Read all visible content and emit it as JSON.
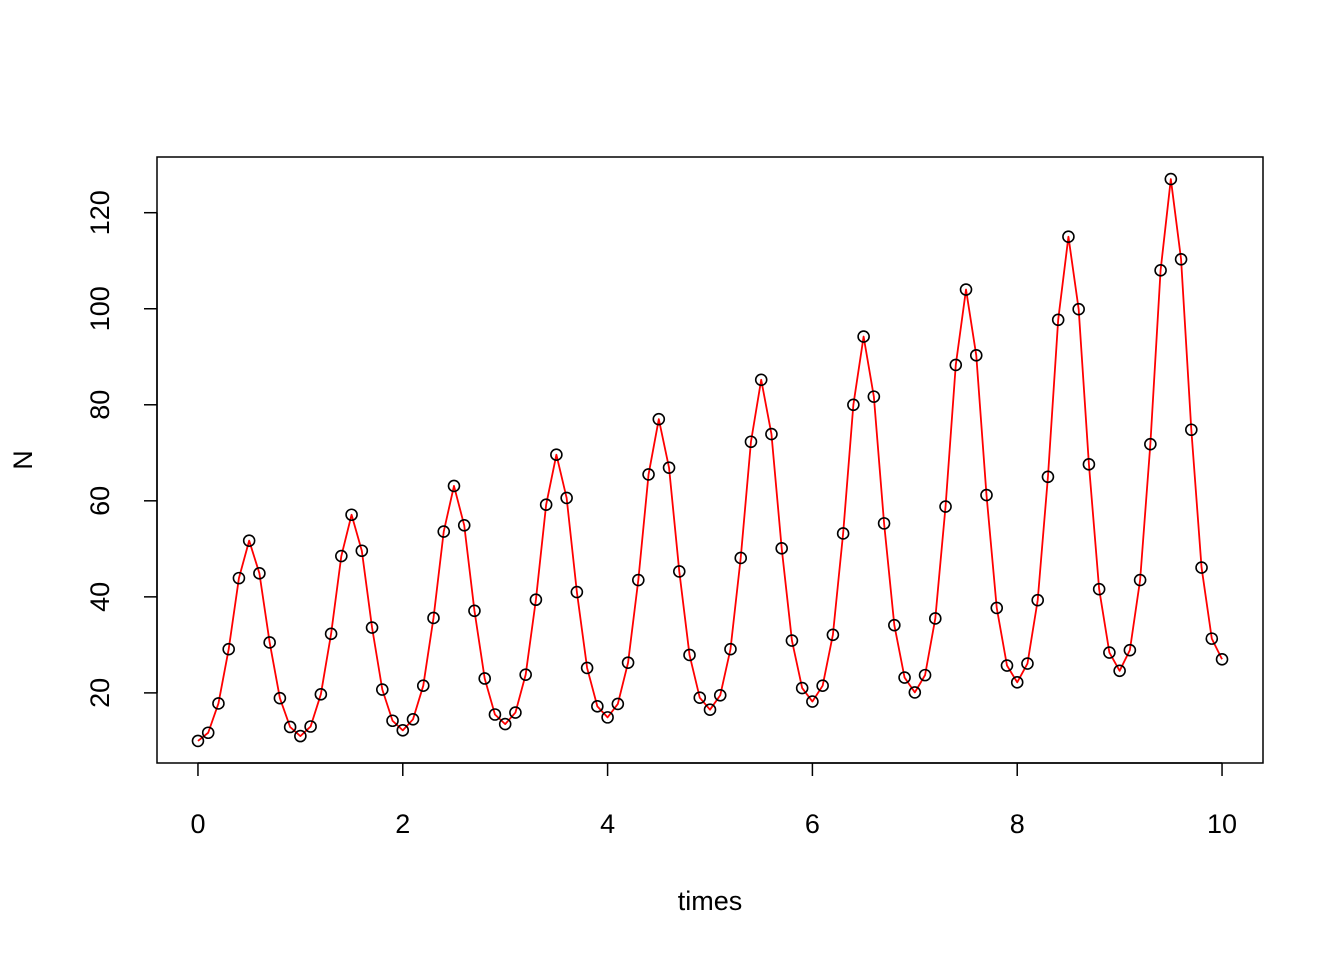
{
  "chart_data": {
    "type": "scatter",
    "title": "",
    "xlabel": "times",
    "ylabel": "N",
    "xlim": [
      -0.4,
      10.4
    ],
    "ylim": [
      5.4,
      131.6
    ],
    "xticks": [
      0,
      2,
      4,
      6,
      8,
      10
    ],
    "xtick_labels": [
      "0",
      "2",
      "4",
      "6",
      "8",
      "10"
    ],
    "yticks": [
      20,
      40,
      60,
      80,
      100,
      120
    ],
    "ytick_labels": [
      "20",
      "40",
      "60",
      "80",
      "100",
      "120"
    ],
    "grid": false,
    "legend": "none",
    "x": [
      0.0,
      0.1,
      0.2,
      0.3,
      0.4,
      0.5,
      0.6,
      0.7,
      0.8,
      0.9,
      1.0,
      1.1,
      1.2,
      1.3,
      1.4,
      1.5,
      1.6,
      1.7,
      1.8,
      1.9,
      2.0,
      2.1,
      2.2,
      2.3,
      2.4,
      2.5,
      2.6,
      2.7,
      2.8,
      2.9,
      3.0,
      3.1,
      3.2,
      3.3,
      3.4,
      3.5,
      3.6,
      3.7,
      3.8,
      3.9,
      4.0,
      4.1,
      4.2,
      4.3,
      4.4,
      4.5,
      4.6,
      4.7,
      4.8,
      4.9,
      5.0,
      5.1,
      5.2,
      5.3,
      5.4,
      5.5,
      5.6,
      5.7,
      5.8,
      5.9,
      6.0,
      6.1,
      6.2,
      6.3,
      6.4,
      6.5,
      6.6,
      6.7,
      6.8,
      6.9,
      7.0,
      7.1,
      7.2,
      7.3,
      7.4,
      7.5,
      7.6,
      7.7,
      7.8,
      7.9,
      8.0,
      8.1,
      8.2,
      8.3,
      8.4,
      8.5,
      8.6,
      8.7,
      8.8,
      8.9,
      9.0,
      9.1,
      9.2,
      9.3,
      9.4,
      9.5,
      9.6,
      9.7,
      9.8,
      9.9,
      10.0
    ],
    "series": [
      {
        "kind": "points",
        "color": "#000000",
        "values": [
          10.0,
          11.7,
          17.8,
          29.1,
          43.9,
          51.7,
          44.9,
          30.5,
          18.9,
          12.9,
          11.0,
          13.0,
          19.7,
          32.3,
          48.5,
          57.1,
          49.6,
          33.6,
          20.7,
          14.2,
          12.2,
          14.5,
          21.5,
          35.6,
          53.6,
          63.1,
          54.9,
          37.1,
          23.0,
          15.5,
          13.5,
          15.9,
          23.8,
          39.4,
          59.2,
          69.6,
          60.6,
          41.0,
          25.2,
          17.2,
          14.9,
          17.7,
          26.3,
          43.5,
          65.5,
          77.0,
          66.9,
          45.3,
          27.9,
          19.0,
          16.5,
          19.5,
          29.1,
          48.1,
          72.3,
          85.2,
          73.9,
          50.1,
          30.9,
          21.0,
          18.2,
          21.5,
          32.1,
          53.2,
          80.0,
          94.2,
          81.7,
          55.3,
          34.1,
          23.2,
          20.1,
          23.7,
          35.5,
          58.8,
          88.3,
          104.0,
          90.3,
          61.2,
          37.7,
          25.7,
          22.2,
          26.1,
          39.3,
          65.0,
          97.7,
          115.0,
          99.9,
          67.6,
          41.6,
          28.4,
          24.6,
          28.9,
          43.5,
          71.8,
          108.0,
          127.0,
          110.3,
          74.8,
          46.1,
          31.3,
          27.0
        ]
      },
      {
        "kind": "line",
        "color": "#ff0000",
        "values": [
          10.0,
          11.7,
          17.8,
          29.1,
          43.9,
          51.7,
          44.9,
          30.5,
          18.9,
          12.9,
          11.0,
          13.0,
          19.7,
          32.3,
          48.5,
          57.1,
          49.6,
          33.6,
          20.7,
          14.2,
          12.2,
          14.5,
          21.5,
          35.6,
          53.6,
          63.1,
          54.9,
          37.1,
          23.0,
          15.5,
          13.5,
          15.9,
          23.8,
          39.4,
          59.2,
          69.6,
          60.6,
          41.0,
          25.2,
          17.2,
          14.9,
          17.7,
          26.3,
          43.5,
          65.5,
          77.0,
          66.9,
          45.3,
          27.9,
          19.0,
          16.5,
          19.5,
          29.1,
          48.1,
          72.3,
          85.2,
          73.9,
          50.1,
          30.9,
          21.0,
          18.2,
          21.5,
          32.1,
          53.2,
          80.0,
          94.2,
          81.7,
          55.3,
          34.1,
          23.2,
          20.1,
          23.7,
          35.5,
          58.8,
          88.3,
          104.0,
          90.3,
          61.2,
          37.7,
          25.7,
          22.2,
          26.1,
          39.3,
          65.0,
          97.7,
          115.0,
          99.9,
          67.6,
          41.6,
          28.4,
          24.6,
          28.9,
          43.5,
          71.8,
          108.0,
          127.0,
          110.3,
          74.8,
          46.1,
          31.3,
          27.0
        ]
      }
    ]
  }
}
